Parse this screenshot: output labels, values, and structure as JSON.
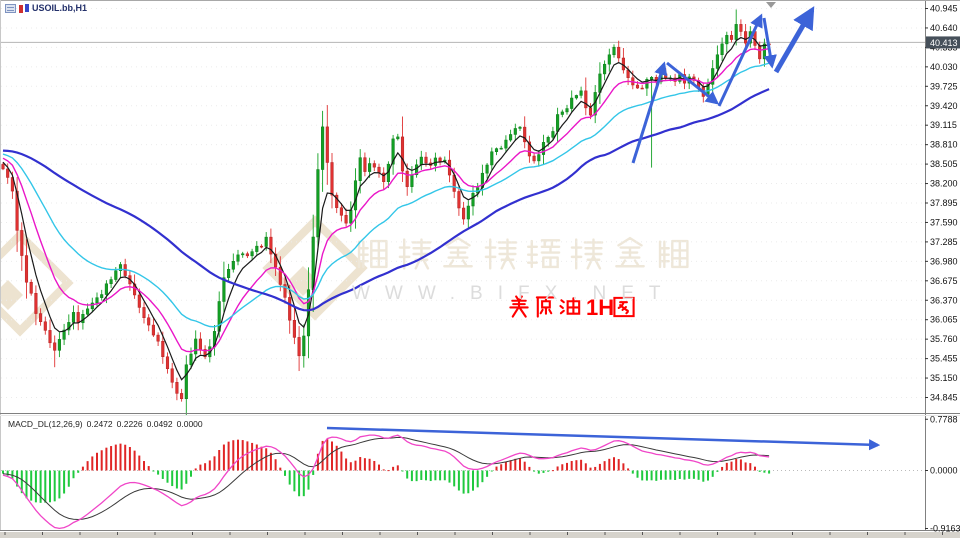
{
  "window": {
    "symbol": "USOIL.bb,H1"
  },
  "price_axis": {
    "labels": [
      "40.945",
      "40.640",
      "40.335",
      "40.030",
      "39.725",
      "39.420",
      "39.115",
      "38.810",
      "38.505",
      "38.200",
      "37.895",
      "37.590",
      "37.285",
      "36.980",
      "36.675",
      "36.370",
      "36.065",
      "35.760",
      "35.455",
      "35.150",
      "34.845"
    ],
    "current_price": "40.413"
  },
  "macd_panel": {
    "label": "MACD_DL(12,26,9)",
    "values": [
      "0.2472",
      "0.2226",
      "0.0492",
      "0.0000"
    ],
    "axis_labels": [
      "0.7788",
      "0.0000",
      "-0.9163"
    ]
  },
  "watermark": {
    "brand_text": "鑄博皇御環球金融",
    "url_text": "WWW.BIFX.NET",
    "logo": "diamond-ribbon"
  },
  "annotation": {
    "text": "美原油1H图",
    "latin_part": "1H",
    "color": "#ff0000"
  },
  "colors": {
    "up": "#13a024",
    "up_stroke": "#0c7a1a",
    "down": "#e03232",
    "down_stroke": "#b22222",
    "ma_fast": "#1a1a1a",
    "ma_mid": "#ea17c8",
    "ma_slow": "#33c6e8",
    "ma_trend": "#3230cf",
    "macd_line": "#f046c8",
    "macd_signal": "#3a3a3a",
    "hist_up": "#e02525",
    "hist_down": "#1fc93e",
    "drawing": "#3c63d8",
    "grid": "#ebebeb",
    "border": "#808080",
    "price_line": "#b5b5b5",
    "price_box": "#46505a",
    "watermark_beige": "#ede3d0",
    "watermark_text": "#eee7d9"
  },
  "chart_data": {
    "type": "candlestick",
    "symbol": "USOIL.bb",
    "timeframe": "H1",
    "bars": 164,
    "ylim": [
      34.845,
      40.945
    ],
    "macd_ylim": [
      -0.9163,
      0.7788
    ],
    "price_line": 40.413,
    "close_anchors": [
      [
        0,
        38.42
      ],
      [
        1,
        38.3
      ],
      [
        2,
        38.05
      ],
      [
        3,
        37.45
      ],
      [
        4,
        37.1
      ],
      [
        5,
        36.65
      ],
      [
        6,
        36.5
      ],
      [
        7,
        36.15
      ],
      [
        8,
        36.0
      ],
      [
        9,
        35.9
      ],
      [
        11,
        35.55
      ],
      [
        13,
        35.92
      ],
      [
        15,
        36.18
      ],
      [
        16,
        36.0
      ],
      [
        18,
        36.28
      ],
      [
        20,
        36.38
      ],
      [
        22,
        36.62
      ],
      [
        25,
        36.97
      ],
      [
        27,
        36.6
      ],
      [
        29,
        36.3
      ],
      [
        31,
        35.95
      ],
      [
        33,
        35.7
      ],
      [
        35,
        35.3
      ],
      [
        37,
        34.95
      ],
      [
        38,
        34.82
      ],
      [
        39,
        35.35
      ],
      [
        41,
        35.75
      ],
      [
        43,
        35.5
      ],
      [
        44,
        35.62
      ],
      [
        45,
        35.85
      ],
      [
        46,
        36.35
      ],
      [
        47,
        36.75
      ],
      [
        49,
        37.0
      ],
      [
        50,
        37.12
      ],
      [
        52,
        37.05
      ],
      [
        54,
        37.18
      ],
      [
        56,
        37.32
      ],
      [
        57,
        37.1
      ],
      [
        58,
        36.85
      ],
      [
        60,
        36.45
      ],
      [
        61,
        36.1
      ],
      [
        63,
        35.5
      ],
      [
        64,
        35.8
      ],
      [
        65,
        36.5
      ],
      [
        66,
        37.4
      ],
      [
        67,
        38.4
      ],
      [
        68,
        39.05
      ],
      [
        69,
        38.55
      ],
      [
        70,
        38.0
      ],
      [
        71,
        37.85
      ],
      [
        73,
        37.55
      ],
      [
        74,
        37.82
      ],
      [
        75,
        38.2
      ],
      [
        76,
        38.6
      ],
      [
        77,
        38.35
      ],
      [
        78,
        38.52
      ],
      [
        80,
        38.38
      ],
      [
        81,
        38.22
      ],
      [
        82,
        38.52
      ],
      [
        83,
        38.88
      ],
      [
        84,
        38.95
      ],
      [
        85,
        38.4
      ],
      [
        86,
        38.12
      ],
      [
        87,
        38.32
      ],
      [
        89,
        38.58
      ],
      [
        91,
        38.48
      ],
      [
        92,
        38.62
      ],
      [
        94,
        38.55
      ],
      [
        95,
        38.35
      ],
      [
        96,
        38.05
      ],
      [
        97,
        37.78
      ],
      [
        98,
        37.68
      ],
      [
        100,
        38.02
      ],
      [
        102,
        38.32
      ],
      [
        103,
        38.52
      ],
      [
        104,
        38.68
      ],
      [
        106,
        38.78
      ],
      [
        108,
        39.0
      ],
      [
        110,
        39.1
      ],
      [
        111,
        38.88
      ],
      [
        112,
        38.62
      ],
      [
        113,
        38.52
      ],
      [
        115,
        38.82
      ],
      [
        117,
        39.05
      ],
      [
        118,
        39.25
      ],
      [
        120,
        39.42
      ],
      [
        121,
        39.52
      ],
      [
        123,
        39.62
      ],
      [
        124,
        39.35
      ],
      [
        125,
        39.3
      ],
      [
        126,
        39.62
      ],
      [
        127,
        39.92
      ],
      [
        128,
        40.1
      ],
      [
        129,
        40.26
      ],
      [
        130,
        40.32
      ],
      [
        131,
        40.15
      ],
      [
        132,
        40.0
      ],
      [
        134,
        39.76
      ],
      [
        136,
        39.72
      ],
      [
        138,
        39.86
      ],
      [
        139,
        39.75
      ],
      [
        140,
        39.95
      ],
      [
        141,
        39.88
      ],
      [
        143,
        39.82
      ],
      [
        144,
        39.92
      ],
      [
        145,
        39.78
      ],
      [
        146,
        39.88
      ],
      [
        147,
        39.8
      ],
      [
        148,
        39.72
      ],
      [
        149,
        39.58
      ],
      [
        150,
        39.72
      ],
      [
        151,
        40.02
      ],
      [
        152,
        40.22
      ],
      [
        153,
        40.38
      ],
      [
        154,
        40.52
      ],
      [
        155,
        40.45
      ],
      [
        156,
        40.72
      ],
      [
        157,
        40.6
      ],
      [
        158,
        40.42
      ],
      [
        159,
        40.6
      ],
      [
        160,
        40.35
      ],
      [
        161,
        40.18
      ],
      [
        162,
        40.42
      ],
      [
        163,
        40.38
      ]
    ],
    "wick_overrides": {
      "11": {
        "low": 35.32
      },
      "35": {
        "low": 35.22
      },
      "38": {
        "low": 34.78
      },
      "63": {
        "low": 35.26
      },
      "68": {
        "high": 39.34
      },
      "131": {
        "high": 40.44
      },
      "138": {
        "low": 38.45
      },
      "156": {
        "high": 40.93
      }
    },
    "moving_averages": [
      {
        "name": "ema-fast",
        "period": 5,
        "color": "#1a1a1a",
        "width": 1.2
      },
      {
        "name": "ema-mid",
        "period": 13,
        "color": "#ea17c8",
        "width": 1.4
      },
      {
        "name": "ema-slow",
        "period": 30,
        "color": "#33c6e8",
        "width": 1.4
      },
      {
        "name": "sma-trend",
        "period": 60,
        "color": "#3230cf",
        "width": 2.2
      }
    ],
    "macd": {
      "fast": 12,
      "slow": 26,
      "signal": 9,
      "hist_mult": 2.4,
      "hist_cap": 0.6,
      "display_peak": 0.66,
      "display_min": 0.88
    },
    "drawings": {
      "main_arrows": [
        [
          633,
          163,
          664,
          64
        ],
        [
          667,
          63,
          717,
          103
        ],
        [
          719,
          106,
          761,
          16
        ],
        [
          764,
          18,
          772,
          66
        ]
      ],
      "big_arrow": [
        776,
        72,
        812,
        10
      ],
      "macd_arrow": [
        327,
        428,
        878,
        445
      ],
      "anchor_triangle": [
        771,
        2
      ]
    }
  }
}
